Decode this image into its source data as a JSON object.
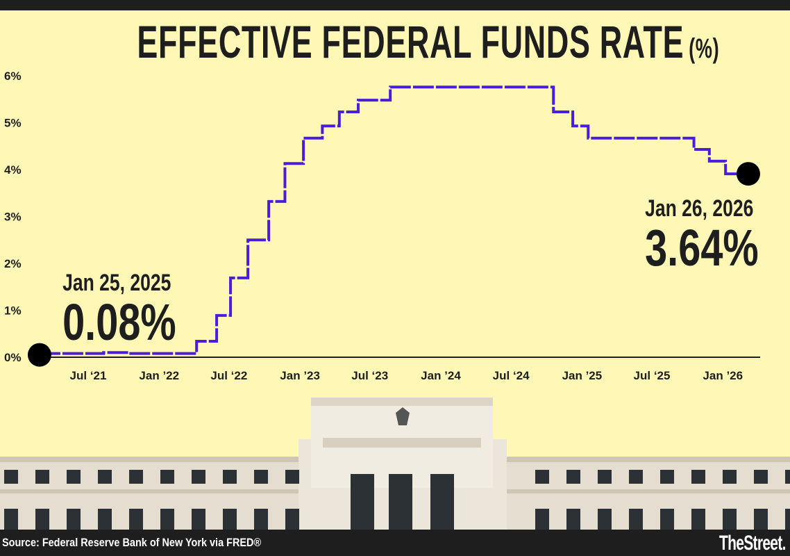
{
  "title": "EFFECTIVE FEDERAL FUNDS RATE",
  "title_unit": "(%)",
  "colors": {
    "background": "#fff7b6",
    "line": "#4a1ed8",
    "text": "#1e1e1e",
    "marker": "#000000",
    "footer": "#1e1e1e"
  },
  "chart_data": {
    "type": "line",
    "step": true,
    "title": "EFFECTIVE FEDERAL FUNDS RATE (%)",
    "xlabel": "",
    "ylabel": "",
    "ylim": [
      0,
      6
    ],
    "xlim": [
      "2021-02-25",
      "2026-04-08"
    ],
    "grid": false,
    "y_ticks": [
      "0%",
      "1%",
      "2%",
      "3%",
      "4%",
      "5%",
      "6%"
    ],
    "y_tick_values": [
      0,
      1,
      2,
      3,
      4,
      5,
      6
    ],
    "x_ticks": [
      "Jul ‘21",
      "Jan ’22",
      "Jul ‘22",
      "Jan ’23",
      "Jul ‘23",
      "Jan ’24",
      "Jul ‘24",
      "Jan ’25",
      "Jul ‘25",
      "Jan ’26"
    ],
    "x_tick_dates": [
      "2021-07-01",
      "2022-01-01",
      "2022-07-01",
      "2023-01-01",
      "2023-07-01",
      "2024-01-01",
      "2024-07-01",
      "2025-01-01",
      "2025-07-01",
      "2026-01-01"
    ],
    "series": [
      {
        "points": [
          [
            "2021-02-25",
            0.08
          ],
          [
            "2021-08-10",
            0.1
          ],
          [
            "2021-10-15",
            0.08
          ],
          [
            "2022-04-08",
            0.34
          ],
          [
            "2022-05-30",
            0.89
          ],
          [
            "2022-07-05",
            1.69
          ],
          [
            "2022-08-19",
            2.5
          ],
          [
            "2022-10-12",
            3.32
          ],
          [
            "2022-11-23",
            4.13
          ],
          [
            "2023-01-10",
            4.67
          ],
          [
            "2023-02-28",
            4.93
          ],
          [
            "2023-04-13",
            5.23
          ],
          [
            "2023-06-01",
            5.48
          ],
          [
            "2023-08-23",
            5.76
          ],
          [
            "2024-10-19",
            5.23
          ],
          [
            "2024-12-08",
            4.93
          ],
          [
            "2025-01-17",
            4.67
          ],
          [
            "2025-10-18",
            4.43
          ],
          [
            "2025-11-27",
            4.18
          ],
          [
            "2026-01-08",
            3.91
          ],
          [
            "2026-03-08",
            3.91
          ]
        ]
      }
    ],
    "annotations": [
      {
        "date_label": "Jan 25, 2025",
        "value_label": "0.08%"
      },
      {
        "date_label": "Jan 26, 2026",
        "value_label": "3.64%"
      }
    ]
  },
  "footer": {
    "source": "Source: Federal Reserve Bank of New York via FRED®",
    "logo": "TheStreet."
  }
}
